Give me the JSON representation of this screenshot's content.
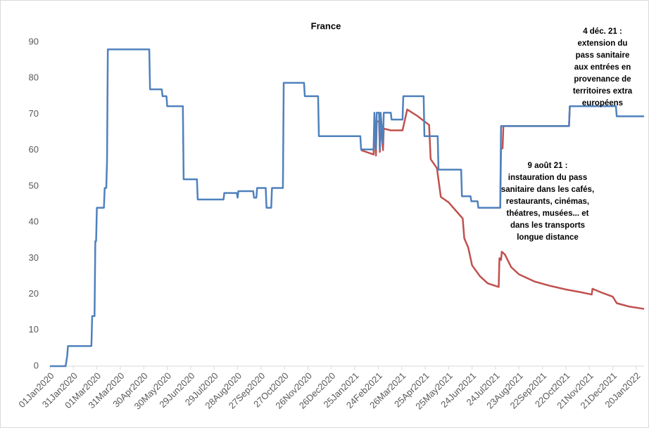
{
  "chart_data": {
    "type": "line",
    "title": "France",
    "xlim": [
      0,
      760
    ],
    "ylim": [
      0,
      90
    ],
    "yticks": [
      0,
      10,
      20,
      30,
      40,
      50,
      60,
      70,
      80,
      90
    ],
    "xticks": [
      {
        "value": 0,
        "label": "01Jan2020"
      },
      {
        "value": 30,
        "label": "31Jan2020"
      },
      {
        "value": 60,
        "label": "01Mar2020"
      },
      {
        "value": 90,
        "label": "31Mar2020"
      },
      {
        "value": 120,
        "label": "30Apr2020"
      },
      {
        "value": 150,
        "label": "30May2020"
      },
      {
        "value": 180,
        "label": "29Jun2020"
      },
      {
        "value": 210,
        "label": "29Jul2020"
      },
      {
        "value": 240,
        "label": "28Aug2020"
      },
      {
        "value": 270,
        "label": "27Sep2020"
      },
      {
        "value": 300,
        "label": "27Oct2020"
      },
      {
        "value": 330,
        "label": "26Nov2020"
      },
      {
        "value": 360,
        "label": "26Dec2020"
      },
      {
        "value": 390,
        "label": "25Jan2021"
      },
      {
        "value": 420,
        "label": "24Feb2021"
      },
      {
        "value": 450,
        "label": "26Mar2021"
      },
      {
        "value": 480,
        "label": "25Apr2021"
      },
      {
        "value": 510,
        "label": "25May2021"
      },
      {
        "value": 540,
        "label": "24Jun2021"
      },
      {
        "value": 570,
        "label": "24Jul2021"
      },
      {
        "value": 600,
        "label": "23Aug2021"
      },
      {
        "value": 630,
        "label": "22Sep2021"
      },
      {
        "value": 660,
        "label": "22Oct2021"
      },
      {
        "value": 690,
        "label": "21Nov2021"
      },
      {
        "value": 720,
        "label": "21Dec2021"
      },
      {
        "value": 750,
        "label": "20Jan2022"
      }
    ],
    "series": [
      {
        "color": "#c0504d",
        "x": [
          398,
          414,
          415,
          417,
          418,
          421,
          422,
          423,
          426,
          427,
          436,
          451,
          457,
          470,
          485,
          487,
          495,
          500,
          510,
          520,
          528,
          530,
          535,
          540,
          550,
          560,
          574,
          575,
          577,
          578,
          582,
          590,
          600,
          620,
          640,
          660,
          680,
          693,
          694,
          705,
          720,
          725,
          740,
          760,
          null,
          576,
          577,
          579,
          580,
          664,
          665
        ],
        "values": [
          60,
          58.8,
          68,
          58.5,
          68,
          68,
          59.5,
          68,
          60,
          66,
          65.5,
          65.5,
          71.3,
          69.5,
          67,
          57.5,
          55,
          47,
          45.5,
          43,
          41,
          35.5,
          33,
          28,
          25,
          23,
          22,
          30,
          29.5,
          31.8,
          31,
          27.5,
          25.5,
          23.5,
          22.3,
          21.3,
          20.5,
          19.9,
          21.5,
          20.5,
          19.3,
          17.5,
          16.6,
          15.9,
          null,
          44,
          60.5,
          60.5,
          66.7,
          66.7,
          72.2
        ]
      },
      {
        "color": "#4f81bd",
        "x": [
          0,
          20,
          22,
          23,
          53,
          54,
          57,
          58,
          59,
          60,
          69,
          70,
          72,
          73,
          74,
          127,
          128,
          143,
          144,
          149,
          150,
          170,
          171,
          188,
          189,
          222,
          223,
          239,
          240,
          241,
          260,
          261,
          264,
          265,
          276,
          277,
          283,
          284,
          298,
          299,
          325,
          326,
          343,
          344,
          397,
          398,
          414,
          415,
          417,
          418,
          421,
          422,
          423,
          426,
          427,
          436,
          437,
          451,
          452,
          478,
          479,
          496,
          497,
          526,
          527,
          538,
          539,
          547,
          548,
          576,
          577,
          664,
          665,
          724,
          725,
          760
        ],
        "values": [
          0,
          0,
          2.8,
          5.6,
          5.6,
          13.9,
          13.9,
          34.7,
          34.7,
          44,
          44,
          49.5,
          49.5,
          57,
          88,
          88,
          76.9,
          76.9,
          75,
          75,
          72.2,
          72.2,
          51.9,
          51.9,
          46.3,
          46.3,
          48.1,
          48.1,
          46.8,
          48.6,
          48.6,
          46.8,
          46.8,
          49.5,
          49.5,
          44,
          44,
          49.5,
          49.5,
          78.7,
          78.7,
          75,
          75,
          63.9,
          63.9,
          60.2,
          60.2,
          70.4,
          60.2,
          70.4,
          70.4,
          60.2,
          70.4,
          62,
          70.4,
          70.4,
          68.5,
          68.5,
          75,
          75,
          63.9,
          63.9,
          54.6,
          54.6,
          47.2,
          47.2,
          45.8,
          45.8,
          44,
          44,
          66.7,
          66.7,
          72.2,
          72.2,
          69.4,
          69.4
        ]
      }
    ],
    "annotations": [
      {
        "lines": [
          "4 déc. 21 :",
          "extension du",
          "pass sanitaire",
          "aux entrées en",
          "provenance de",
          "territoires extra",
          "européens"
        ]
      },
      {
        "lines": [
          "9 août 21 :",
          "instauration du pass",
          "sanitaire dans les cafés,",
          "restaurants, cinémas,",
          "théatres, musées... et",
          "dans les transports",
          "longue distance"
        ]
      }
    ]
  }
}
